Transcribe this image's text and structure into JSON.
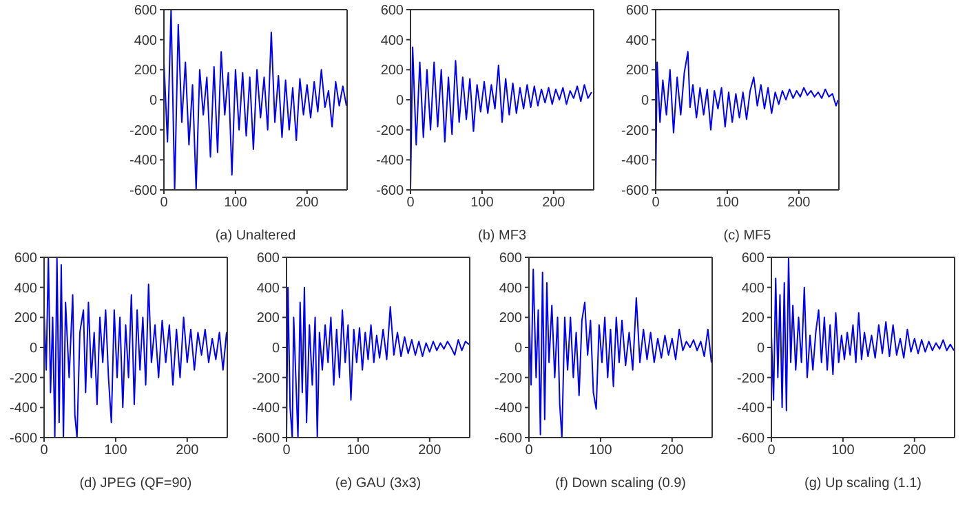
{
  "chart_data": [
    {
      "type": "line",
      "xlabel": "(a) Unaltered",
      "color": "#0000ff",
      "xlim": [
        0,
        256
      ],
      "xticks": [
        0,
        100,
        200
      ],
      "ylim": [
        -600,
        600
      ],
      "yticks": [
        -600,
        -400,
        -200,
        0,
        200,
        400,
        600
      ],
      "x": [
        0,
        5,
        10,
        15,
        20,
        25,
        30,
        35,
        40,
        45,
        50,
        55,
        60,
        65,
        70,
        75,
        80,
        85,
        90,
        95,
        100,
        105,
        110,
        115,
        120,
        125,
        130,
        135,
        140,
        145,
        150,
        155,
        160,
        165,
        170,
        175,
        180,
        185,
        190,
        195,
        200,
        205,
        210,
        215,
        220,
        225,
        230,
        235,
        240,
        245,
        250,
        255
      ],
      "values": [
        250,
        -280,
        600,
        -600,
        500,
        -150,
        250,
        -300,
        100,
        -600,
        200,
        -100,
        150,
        -380,
        220,
        -350,
        320,
        -100,
        180,
        -500,
        200,
        -200,
        180,
        -240,
        150,
        -330,
        200,
        -120,
        150,
        -200,
        450,
        -150,
        160,
        -250,
        130,
        -200,
        80,
        -270,
        140,
        -100,
        100,
        -120,
        120,
        -80,
        200,
        -50,
        60,
        -180,
        120,
        -40,
        90,
        -40
      ]
    },
    {
      "type": "line",
      "xlabel": "(b) MF3",
      "color": "#0000ff",
      "xlim": [
        0,
        256
      ],
      "xticks": [
        0,
        100,
        200
      ],
      "ylim": [
        -600,
        600
      ],
      "yticks": [
        -600,
        -400,
        -200,
        0,
        200,
        400,
        600
      ],
      "x": [
        0,
        3,
        8,
        13,
        18,
        23,
        28,
        33,
        38,
        43,
        48,
        53,
        58,
        63,
        68,
        73,
        78,
        83,
        88,
        93,
        98,
        103,
        108,
        113,
        118,
        123,
        128,
        133,
        138,
        143,
        148,
        153,
        158,
        163,
        168,
        173,
        178,
        183,
        188,
        193,
        198,
        203,
        208,
        213,
        218,
        223,
        228,
        233,
        238,
        243,
        248,
        253
      ],
      "values": [
        -600,
        350,
        -300,
        250,
        -250,
        200,
        -200,
        250,
        -180,
        200,
        -280,
        150,
        -230,
        260,
        -150,
        150,
        -130,
        140,
        -210,
        100,
        -80,
        120,
        -90,
        100,
        -60,
        230,
        -150,
        140,
        -100,
        110,
        -90,
        80,
        -60,
        100,
        -50,
        90,
        -40,
        70,
        -20,
        80,
        -30,
        70,
        0,
        80,
        -30,
        60,
        10,
        90,
        -10,
        100,
        10,
        50
      ]
    },
    {
      "type": "line",
      "xlabel": "(c) MF5",
      "color": "#0000ff",
      "xlim": [
        0,
        256
      ],
      "xticks": [
        0,
        100,
        200
      ],
      "ylim": [
        -600,
        600
      ],
      "yticks": [
        -600,
        -400,
        -200,
        0,
        200,
        400,
        600
      ],
      "x": [
        0,
        2,
        6,
        10,
        15,
        20,
        25,
        30,
        35,
        40,
        45,
        48,
        52,
        57,
        62,
        67,
        72,
        77,
        82,
        87,
        92,
        97,
        102,
        107,
        112,
        117,
        122,
        127,
        132,
        137,
        142,
        147,
        152,
        157,
        162,
        167,
        172,
        177,
        182,
        187,
        192,
        197,
        202,
        207,
        212,
        217,
        222,
        227,
        232,
        237,
        242,
        247,
        252,
        255
      ],
      "values": [
        -600,
        250,
        -150,
        130,
        -100,
        200,
        -220,
        150,
        -100,
        180,
        320,
        -50,
        100,
        -120,
        80,
        -100,
        70,
        -200,
        60,
        -60,
        80,
        -180,
        50,
        -150,
        40,
        -120,
        50,
        -130,
        60,
        150,
        -40,
        100,
        -60,
        80,
        -90,
        50,
        -30,
        60,
        0,
        70,
        10,
        60,
        20,
        80,
        30,
        60,
        20,
        50,
        10,
        70,
        20,
        40,
        -40,
        0
      ]
    },
    {
      "type": "line",
      "xlabel": "(d) JPEG (QF=90)",
      "color": "#0000ff",
      "xlim": [
        0,
        256
      ],
      "xticks": [
        0,
        100,
        200
      ],
      "ylim": [
        -600,
        600
      ],
      "yticks": [
        -600,
        -400,
        -200,
        0,
        200,
        400,
        600
      ],
      "x": [
        0,
        3,
        6,
        9,
        12,
        15,
        18,
        21,
        24,
        27,
        30,
        35,
        40,
        43,
        46,
        50,
        55,
        58,
        62,
        66,
        70,
        74,
        78,
        82,
        86,
        90,
        94,
        98,
        102,
        106,
        110,
        114,
        118,
        122,
        126,
        130,
        134,
        138,
        142,
        146,
        150,
        155,
        160,
        165,
        170,
        175,
        180,
        185,
        190,
        195,
        200,
        205,
        210,
        215,
        220,
        225,
        230,
        235,
        240,
        245,
        250,
        255
      ],
      "values": [
        230,
        -150,
        600,
        -300,
        200,
        -600,
        600,
        -500,
        550,
        -600,
        300,
        -200,
        350,
        -450,
        -600,
        100,
        250,
        -300,
        300,
        -200,
        100,
        -380,
        200,
        -100,
        250,
        -200,
        -500,
        250,
        -200,
        200,
        -400,
        150,
        -200,
        350,
        -380,
        250,
        -150,
        200,
        -250,
        420,
        -100,
        150,
        -200,
        180,
        -100,
        150,
        -250,
        120,
        -200,
        200,
        -100,
        120,
        -150,
        100,
        -50,
        120,
        -100,
        60,
        -80,
        100,
        -150,
        100
      ]
    },
    {
      "type": "line",
      "xlabel": "(e) GAU (3x3)",
      "color": "#0000ff",
      "xlim": [
        0,
        256
      ],
      "xticks": [
        0,
        100,
        200
      ],
      "ylim": [
        -600,
        600
      ],
      "yticks": [
        -600,
        -400,
        -200,
        0,
        200,
        400,
        600
      ],
      "x": [
        0,
        2,
        5,
        8,
        10,
        13,
        16,
        19,
        22,
        25,
        28,
        32,
        36,
        40,
        43,
        46,
        50,
        54,
        58,
        62,
        66,
        70,
        74,
        78,
        82,
        86,
        90,
        94,
        98,
        102,
        106,
        110,
        114,
        118,
        122,
        126,
        130,
        135,
        140,
        145,
        150,
        155,
        160,
        165,
        170,
        175,
        180,
        185,
        190,
        195,
        200,
        205,
        210,
        215,
        220,
        225,
        230,
        235,
        240,
        245,
        250,
        255
      ],
      "values": [
        -600,
        400,
        -400,
        -600,
        200,
        -200,
        -600,
        300,
        -300,
        400,
        -500,
        150,
        -250,
        200,
        -600,
        100,
        -150,
        150,
        -100,
        200,
        -250,
        120,
        -200,
        250,
        -100,
        150,
        -350,
        120,
        -100,
        130,
        -150,
        100,
        -80,
        150,
        -100,
        80,
        -70,
        120,
        -80,
        270,
        -50,
        100,
        -60,
        70,
        -40,
        50,
        -50,
        40,
        -60,
        30,
        -30,
        40,
        -20,
        30,
        -10,
        40,
        0,
        -50,
        50,
        -20,
        40,
        20
      ]
    },
    {
      "type": "line",
      "xlabel": "(f) Down scaling (0.9)",
      "color": "#0000ff",
      "xlim": [
        0,
        256
      ],
      "xticks": [
        0,
        100,
        200
      ],
      "ylim": [
        -600,
        600
      ],
      "yticks": [
        -600,
        -400,
        -200,
        0,
        200,
        400,
        600
      ],
      "x": [
        0,
        3,
        6,
        10,
        13,
        16,
        19,
        22,
        25,
        28,
        32,
        36,
        40,
        43,
        46,
        50,
        54,
        58,
        62,
        66,
        70,
        74,
        78,
        82,
        86,
        90,
        94,
        98,
        102,
        106,
        110,
        114,
        118,
        122,
        126,
        130,
        135,
        140,
        145,
        150,
        155,
        160,
        165,
        170,
        175,
        180,
        185,
        190,
        195,
        200,
        205,
        210,
        215,
        220,
        225,
        230,
        235,
        240,
        245,
        250,
        255
      ],
      "values": [
        260,
        -250,
        520,
        -200,
        250,
        -580,
        500,
        -480,
        430,
        -100,
        280,
        -200,
        200,
        -380,
        -600,
        200,
        -150,
        200,
        -200,
        100,
        -320,
        180,
        300,
        -50,
        180,
        -300,
        -410,
        150,
        -100,
        200,
        -200,
        120,
        -260,
        200,
        -100,
        180,
        -120,
        100,
        -150,
        330,
        -100,
        120,
        -80,
        100,
        -100,
        60,
        -70,
        80,
        -50,
        60,
        -80,
        120,
        -20,
        40,
        0,
        50,
        -20,
        40,
        -60,
        120,
        -100
      ]
    },
    {
      "type": "line",
      "xlabel": "(g) Up scaling (1.1)",
      "color": "#0000ff",
      "xlim": [
        0,
        256
      ],
      "xticks": [
        0,
        100,
        200
      ],
      "ylim": [
        -600,
        600
      ],
      "yticks": [
        -600,
        -400,
        -200,
        0,
        200,
        400,
        600
      ],
      "x": [
        0,
        3,
        6,
        9,
        12,
        15,
        18,
        21,
        24,
        27,
        30,
        34,
        38,
        42,
        46,
        50,
        54,
        58,
        62,
        66,
        70,
        74,
        78,
        82,
        86,
        90,
        94,
        98,
        102,
        106,
        110,
        114,
        118,
        122,
        126,
        130,
        135,
        140,
        145,
        150,
        155,
        160,
        165,
        170,
        175,
        180,
        185,
        190,
        195,
        200,
        205,
        210,
        215,
        220,
        225,
        230,
        235,
        240,
        245,
        250,
        255
      ],
      "values": [
        80,
        -350,
        460,
        -200,
        350,
        -400,
        430,
        -420,
        600,
        -100,
        280,
        -150,
        200,
        -100,
        400,
        -200,
        80,
        -150,
        100,
        250,
        -100,
        200,
        -150,
        150,
        -180,
        230,
        -100,
        80,
        -80,
        100,
        -50,
        150,
        -100,
        230,
        -80,
        100,
        -60,
        80,
        -70,
        150,
        -40,
        170,
        -60,
        150,
        -50,
        60,
        -70,
        120,
        -30,
        60,
        -40,
        50,
        -30,
        40,
        -20,
        30,
        -10,
        50,
        -20,
        20,
        -20
      ]
    }
  ]
}
